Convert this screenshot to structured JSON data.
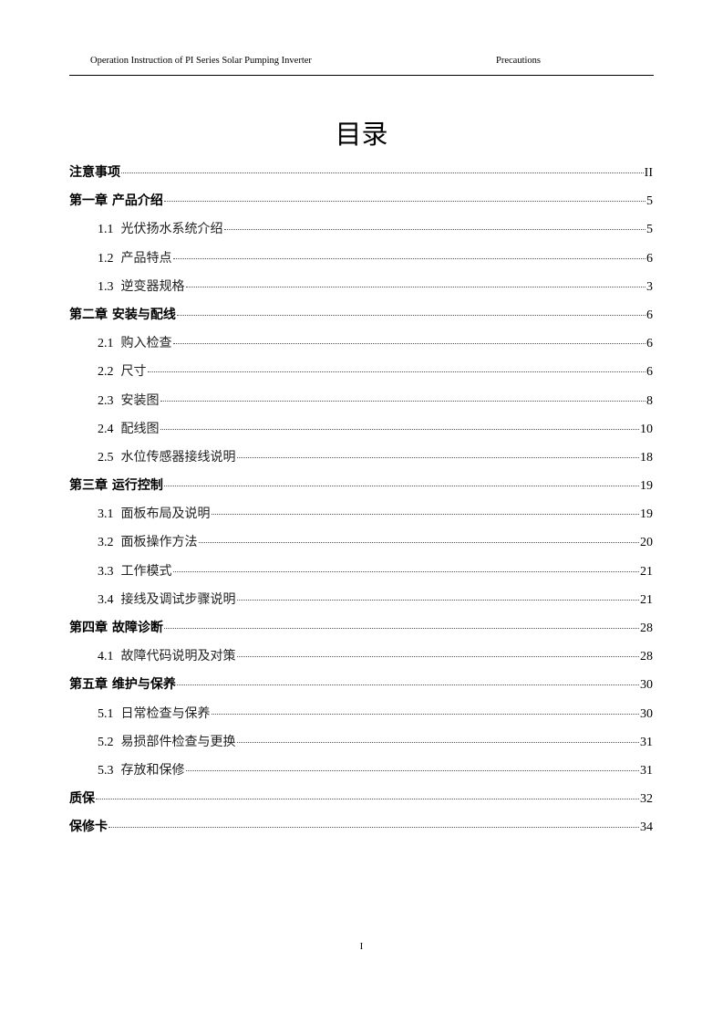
{
  "header": {
    "left": "Operation Instruction of PI Series Solar Pumping Inverter",
    "right": "Precautions"
  },
  "title": "目录",
  "toc": [
    {
      "level": "chapter",
      "num": "",
      "label": "注意事项",
      "page": "II"
    },
    {
      "level": "chapter",
      "num": "",
      "label": "第一章  产品介绍",
      "page": "5"
    },
    {
      "level": "section",
      "num": "1.1",
      "label": "光伏扬水系统介绍",
      "page": "5"
    },
    {
      "level": "section",
      "num": "1.2",
      "label": "产品特点",
      "page": "6"
    },
    {
      "level": "section",
      "num": "1.3",
      "label": "逆变器规格",
      "page": "3"
    },
    {
      "level": "chapter",
      "num": "",
      "label": "第二章  安装与配线",
      "page": "6"
    },
    {
      "level": "section",
      "num": "2.1",
      "label": "购入检查",
      "page": "6"
    },
    {
      "level": "section",
      "num": "2.2",
      "label": "尺寸",
      "page": "6"
    },
    {
      "level": "section",
      "num": "2.3",
      "label": "安装图",
      "page": "8"
    },
    {
      "level": "section",
      "num": "2.4",
      "label": "配线图",
      "page": "10"
    },
    {
      "level": "section",
      "num": "2.5",
      "label": "水位传感器接线说明",
      "page": "18"
    },
    {
      "level": "chapter",
      "num": "",
      "label": "第三章  运行控制",
      "page": "19"
    },
    {
      "level": "section",
      "num": "3.1",
      "label": "面板布局及说明",
      "page": "19"
    },
    {
      "level": "section",
      "num": "3.2",
      "label": "面板操作方法",
      "page": "20"
    },
    {
      "level": "section",
      "num": "3.3",
      "label": "工作模式",
      "page": "21"
    },
    {
      "level": "section",
      "num": "3.4",
      "label": "接线及调试步骤说明",
      "page": "21"
    },
    {
      "level": "chapter",
      "num": "",
      "label": "第四章  故障诊断",
      "page": "28"
    },
    {
      "level": "section",
      "num": "4.1",
      "label": "故障代码说明及对策",
      "page": "28"
    },
    {
      "level": "chapter",
      "num": "",
      "label": "第五章  维护与保养",
      "page": "30"
    },
    {
      "level": "section",
      "num": "5.1",
      "label": "日常检查与保养",
      "page": "30"
    },
    {
      "level": "section",
      "num": "5.2",
      "label": "易损部件检查与更换",
      "page": "31"
    },
    {
      "level": "section",
      "num": "5.3",
      "label": "存放和保修",
      "page": "31"
    },
    {
      "level": "chapter",
      "num": "",
      "label": "质保",
      "page": "32"
    },
    {
      "level": "chapter",
      "num": "",
      "label": "保修卡",
      "page": "34"
    }
  ],
  "footer": {
    "page_number": "I"
  }
}
